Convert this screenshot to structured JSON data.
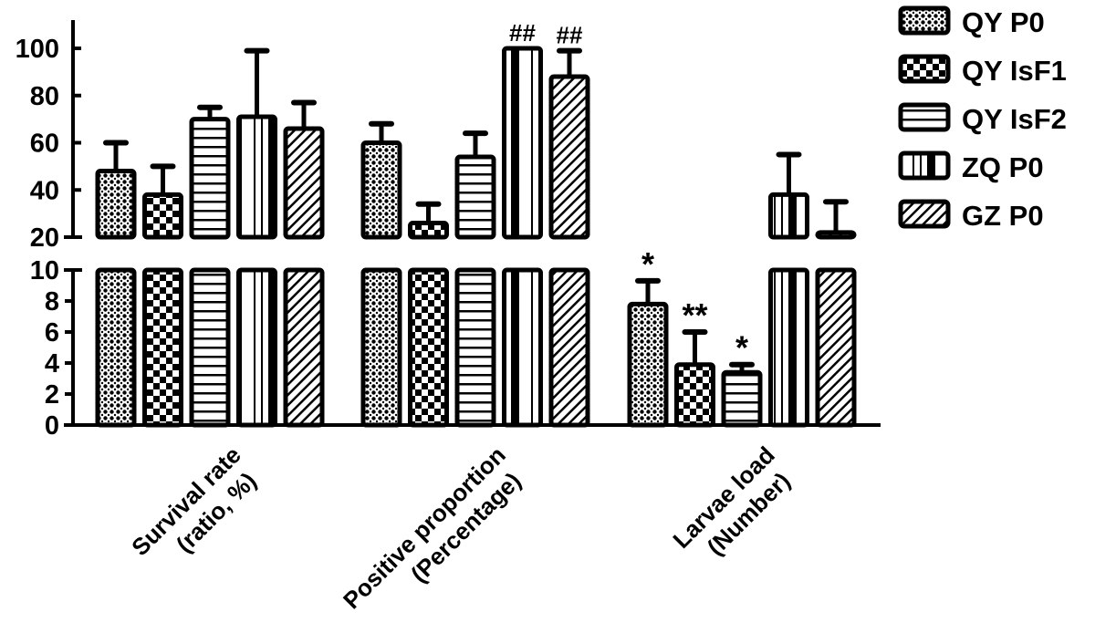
{
  "chart_data": {
    "type": "bar",
    "title": "",
    "xlabel": "",
    "ylabel": "",
    "broken_axis": true,
    "y_axis_segments": [
      {
        "name": "upper",
        "ylim": [
          20,
          100
        ],
        "ticks": [
          20,
          40,
          60,
          80,
          100
        ]
      },
      {
        "name": "lower",
        "ylim": [
          0,
          10
        ],
        "ticks": [
          0,
          2,
          4,
          6,
          8,
          10
        ]
      }
    ],
    "categories": [
      "Survival rate\n(ratio, %)",
      "Positive proportion\n(Percentage)",
      "Larvae load\n(Number)"
    ],
    "category_lines": [
      [
        "Survival rate",
        "(ratio, %)"
      ],
      [
        "Positive proportion",
        "(Percentage)"
      ],
      [
        "Larvae load",
        "(Number)"
      ]
    ],
    "legend_position": "top-right",
    "series": [
      {
        "name": "QY P0",
        "pattern": "dots",
        "values": [
          48,
          60,
          7.8
        ],
        "error_upper": [
          60,
          68,
          9.3
        ],
        "annotations": [
          "",
          "",
          "*"
        ]
      },
      {
        "name": "QY IsF1",
        "pattern": "checker",
        "values": [
          38,
          26,
          3.9
        ],
        "error_upper": [
          50,
          34,
          6.0
        ],
        "annotations": [
          "",
          "",
          "**"
        ]
      },
      {
        "name": "QY IsF2",
        "pattern": "horizontal",
        "values": [
          70,
          54,
          3.4
        ],
        "error_upper": [
          75,
          64,
          3.9
        ],
        "annotations": [
          "",
          "",
          "*"
        ]
      },
      {
        "name": "ZQ P0",
        "pattern": "vertical",
        "values": [
          71,
          100,
          38
        ],
        "error_upper": [
          99,
          100,
          55
        ],
        "annotations": [
          "",
          "##",
          ""
        ]
      },
      {
        "name": "GZ P0",
        "pattern": "diagonal",
        "values": [
          66,
          88,
          22
        ],
        "error_upper": [
          77,
          99,
          35
        ],
        "annotations": [
          "",
          "##",
          ""
        ]
      }
    ]
  },
  "legend": {
    "items": [
      {
        "label": "QY P0"
      },
      {
        "label": "QY IsF1"
      },
      {
        "label": "QY IsF2"
      },
      {
        "label": "ZQ P0"
      },
      {
        "label": "GZ P0"
      }
    ]
  },
  "axis": {
    "upper_ticks": [
      "100",
      "80",
      "60",
      "40",
      "20"
    ],
    "lower_ticks": [
      "10",
      "8",
      "6",
      "4",
      "2",
      "0"
    ]
  },
  "colors": {
    "ink": "#000000",
    "background": "#ffffff"
  }
}
